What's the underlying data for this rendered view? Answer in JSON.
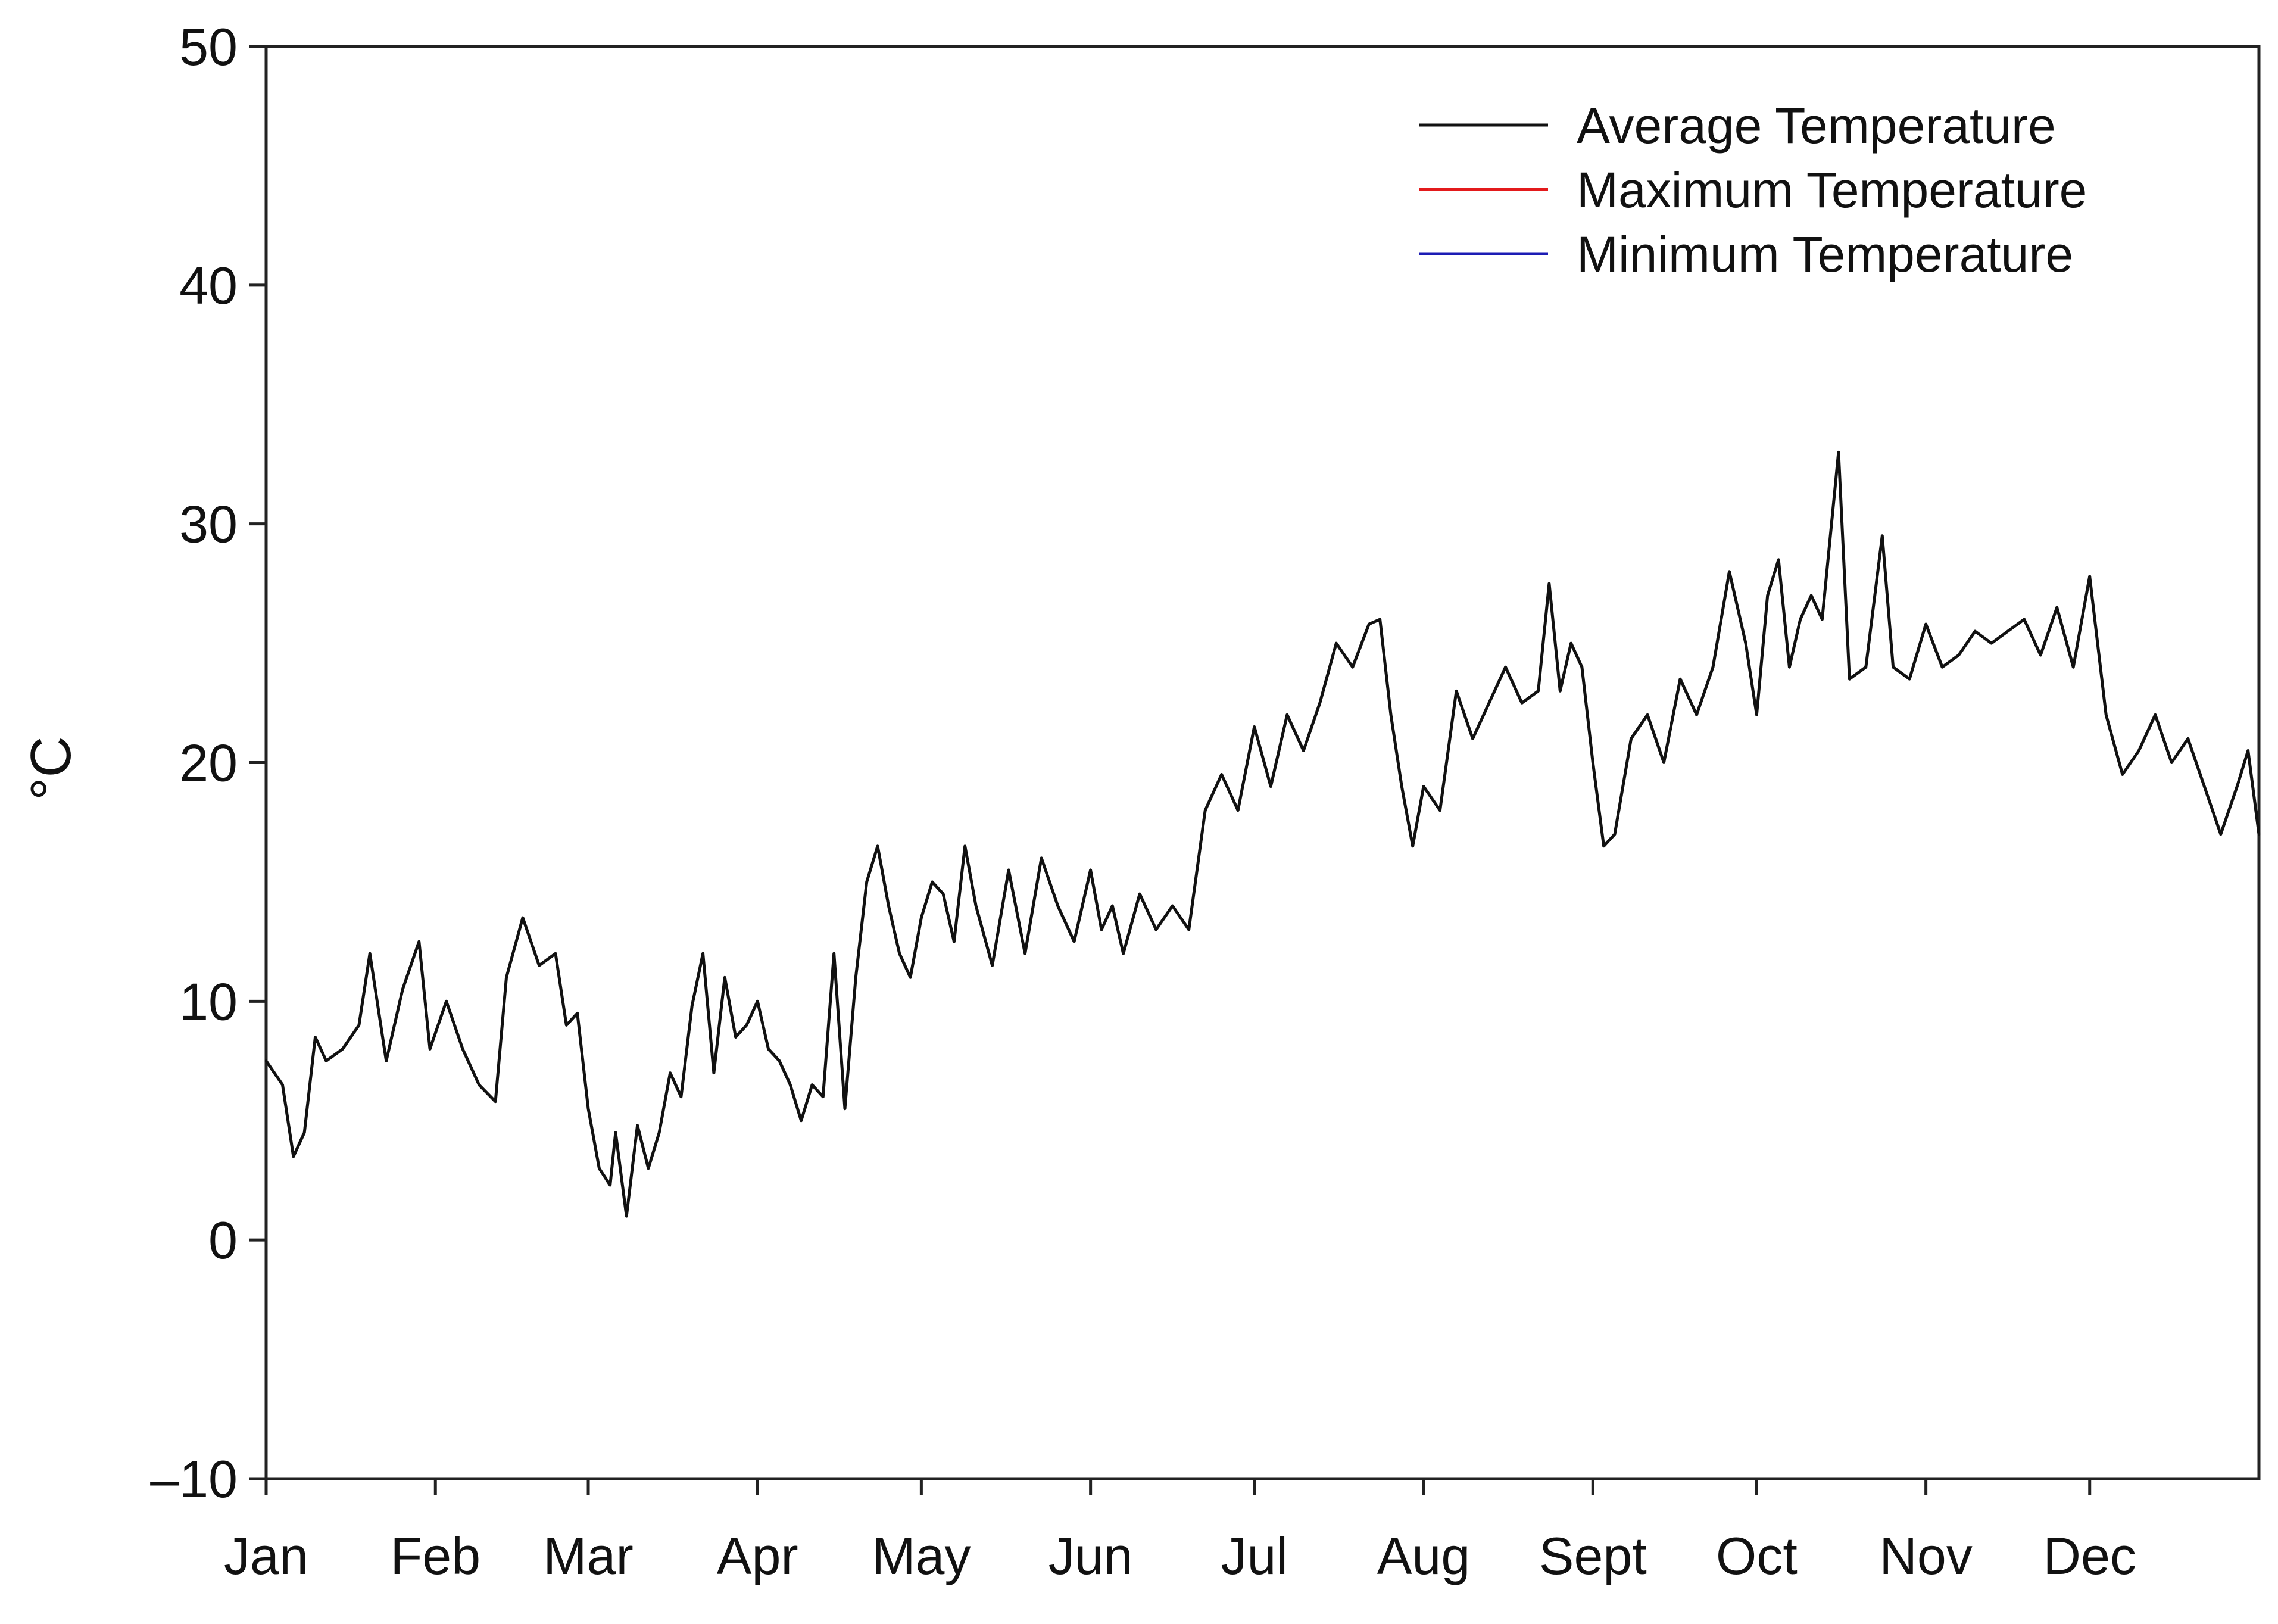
{
  "chart_data": {
    "type": "line",
    "title": "",
    "xlabel": "",
    "ylabel": "°C",
    "ylim": [
      -10,
      50
    ],
    "xlim": [
      0,
      365
    ],
    "yticks": [
      {
        "value": -10,
        "label": "–10"
      },
      {
        "value": 0,
        "label": "0"
      },
      {
        "value": 10,
        "label": "10"
      },
      {
        "value": 20,
        "label": "20"
      },
      {
        "value": 30,
        "label": "30"
      },
      {
        "value": 40,
        "label": "40"
      },
      {
        "value": 50,
        "label": "50"
      }
    ],
    "months": [
      {
        "label": "Jan",
        "day": 0
      },
      {
        "label": "Feb",
        "day": 31
      },
      {
        "label": "Mar",
        "day": 59
      },
      {
        "label": "Apr",
        "day": 90
      },
      {
        "label": "May",
        "day": 120
      },
      {
        "label": "Jun",
        "day": 151
      },
      {
        "label": "Jul",
        "day": 181
      },
      {
        "label": "Aug",
        "day": 212
      },
      {
        "label": "Sept",
        "day": 243
      },
      {
        "label": "Oct",
        "day": 273
      },
      {
        "label": "Nov",
        "day": 304
      },
      {
        "label": "Dec",
        "day": 334
      }
    ],
    "grid": false,
    "legend_position": "top-right",
    "series": [
      {
        "name": "Average Temperature",
        "color": "#111111",
        "points": [
          [
            0,
            7.5
          ],
          [
            3,
            6.5
          ],
          [
            5,
            3.5
          ],
          [
            7,
            4.5
          ],
          [
            9,
            8.5
          ],
          [
            11,
            7.5
          ],
          [
            14,
            8
          ],
          [
            17,
            9
          ],
          [
            19,
            12
          ],
          [
            22,
            7.5
          ],
          [
            25,
            10.5
          ],
          [
            28,
            12.5
          ],
          [
            30,
            8
          ],
          [
            33,
            10
          ],
          [
            36,
            8
          ],
          [
            39,
            6.5
          ],
          [
            42,
            5.8
          ],
          [
            44,
            11
          ],
          [
            47,
            13.5
          ],
          [
            50,
            11.5
          ],
          [
            53,
            12
          ],
          [
            55,
            9
          ],
          [
            57,
            9.5
          ],
          [
            59,
            5.5
          ],
          [
            61,
            3
          ],
          [
            63,
            2.3
          ],
          [
            64,
            4.5
          ],
          [
            66,
            1
          ],
          [
            68,
            4.8
          ],
          [
            70,
            3
          ],
          [
            72,
            4.5
          ],
          [
            74,
            7
          ],
          [
            76,
            6
          ],
          [
            78,
            9.8
          ],
          [
            80,
            12
          ],
          [
            82,
            7
          ],
          [
            84,
            11
          ],
          [
            86,
            8.5
          ],
          [
            88,
            9
          ],
          [
            90,
            10
          ],
          [
            92,
            8
          ],
          [
            94,
            7.5
          ],
          [
            96,
            6.5
          ],
          [
            98,
            5
          ],
          [
            100,
            6.5
          ],
          [
            102,
            6
          ],
          [
            104,
            12
          ],
          [
            106,
            5.5
          ],
          [
            108,
            11
          ],
          [
            110,
            15
          ],
          [
            112,
            16.5
          ],
          [
            114,
            14
          ],
          [
            116,
            12
          ],
          [
            118,
            11
          ],
          [
            120,
            13.5
          ],
          [
            122,
            15
          ],
          [
            124,
            14.5
          ],
          [
            126,
            12.5
          ],
          [
            128,
            16.5
          ],
          [
            130,
            14
          ],
          [
            133,
            11.5
          ],
          [
            136,
            15.5
          ],
          [
            139,
            12
          ],
          [
            142,
            16
          ],
          [
            145,
            14
          ],
          [
            148,
            12.5
          ],
          [
            151,
            15.5
          ],
          [
            153,
            13
          ],
          [
            155,
            14
          ],
          [
            157,
            12
          ],
          [
            160,
            14.5
          ],
          [
            163,
            13
          ],
          [
            166,
            14
          ],
          [
            169,
            13
          ],
          [
            172,
            18
          ],
          [
            175,
            19.5
          ],
          [
            178,
            18
          ],
          [
            181,
            21.5
          ],
          [
            184,
            19
          ],
          [
            187,
            22
          ],
          [
            190,
            20.5
          ],
          [
            193,
            22.5
          ],
          [
            196,
            25
          ],
          [
            199,
            24
          ],
          [
            202,
            25.8
          ],
          [
            204,
            26
          ],
          [
            206,
            22
          ],
          [
            208,
            19
          ],
          [
            210,
            16.5
          ],
          [
            212,
            19
          ],
          [
            215,
            18
          ],
          [
            218,
            23
          ],
          [
            221,
            21
          ],
          [
            224,
            22.5
          ],
          [
            227,
            24
          ],
          [
            230,
            22.5
          ],
          [
            233,
            23
          ],
          [
            235,
            27.5
          ],
          [
            237,
            23
          ],
          [
            239,
            25
          ],
          [
            241,
            24
          ],
          [
            243,
            20
          ],
          [
            245,
            16.5
          ],
          [
            247,
            17
          ],
          [
            250,
            21
          ],
          [
            253,
            22
          ],
          [
            256,
            20
          ],
          [
            259,
            23.5
          ],
          [
            262,
            22
          ],
          [
            265,
            24
          ],
          [
            268,
            28
          ],
          [
            271,
            25
          ],
          [
            273,
            22
          ],
          [
            275,
            27
          ],
          [
            277,
            28.5
          ],
          [
            279,
            24
          ],
          [
            281,
            26
          ],
          [
            283,
            27
          ],
          [
            285,
            26
          ],
          [
            288,
            33
          ],
          [
            290,
            23.5
          ],
          [
            293,
            24
          ],
          [
            296,
            29.5
          ],
          [
            298,
            24
          ],
          [
            301,
            23.5
          ],
          [
            304,
            25.8
          ],
          [
            307,
            24
          ],
          [
            310,
            24.5
          ],
          [
            313,
            25.5
          ],
          [
            316,
            25
          ],
          [
            319,
            25.5
          ],
          [
            322,
            26
          ],
          [
            325,
            24.5
          ],
          [
            328,
            26.5
          ],
          [
            331,
            24
          ],
          [
            334,
            27.8
          ],
          [
            337,
            22
          ],
          [
            340,
            19.5
          ],
          [
            343,
            20.5
          ],
          [
            346,
            22
          ],
          [
            349,
            20
          ],
          [
            352,
            21
          ],
          [
            355,
            19
          ],
          [
            358,
            17
          ],
          [
            361,
            19
          ],
          [
            363,
            20.5
          ],
          [
            365,
            17
          ]
        ]
      }
    ]
  },
  "legend": {
    "items": [
      {
        "label": "Average Temperature",
        "color": "#111111"
      },
      {
        "label": "Maximum Temperature",
        "color": "#e31a1c"
      },
      {
        "label": "Minimum Temperature",
        "color": "#1c1cb4"
      }
    ]
  }
}
